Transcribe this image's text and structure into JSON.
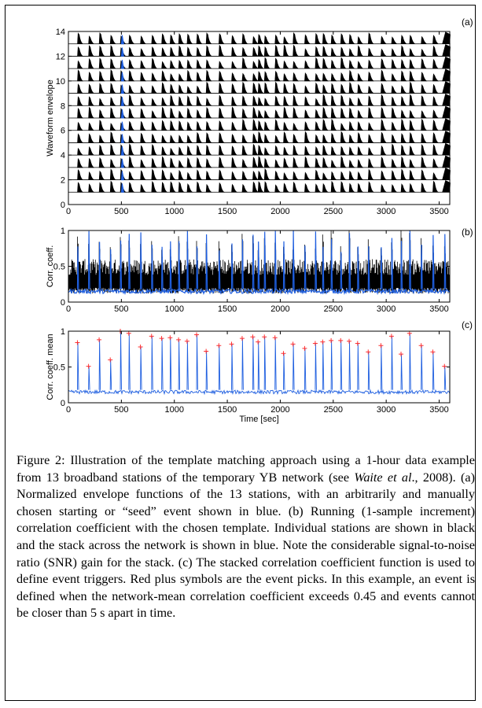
{
  "figure": {
    "caption": {
      "part1": "Figure 2: Illustration of the template matching approach using a 1-hour data example from 13 broadband stations of the temporary YB network (see ",
      "ref_author": "Waite et al",
      "part2": "., 2008). (a) Normalized envelope functions of the 13 stations, with an arbitrarily and manually chosen starting or “seed” event shown in blue. (b) Running (1-sample increment) correlation coefficient with the chosen template. Individual stations are shown in black and the stack across the network is shown in blue. Note the considerable signal-to-noise ratio (SNR) gain for the stack. (c) The stacked correlation coefficient function is used to define event triggers. Red plus symbols are the event picks. In this example, an event is defined when the network-mean correlation coefficient exceeds 0.45 and events cannot be closer than 5 s apart in time."
    }
  },
  "chart_data": [
    {
      "panel": "(a)",
      "type": "line",
      "xlabel": "",
      "ylabel": "Waveform envelope",
      "xlim": [
        0,
        3600
      ],
      "ylim": [
        0,
        14
      ],
      "xticks": [
        0,
        500,
        1000,
        1500,
        2000,
        2500,
        3000,
        3500
      ],
      "yticks": [
        0,
        2,
        4,
        6,
        8,
        10,
        12,
        14
      ],
      "station_offsets": [
        1,
        2,
        3,
        4,
        5,
        6,
        7,
        8,
        9,
        10,
        11,
        12,
        13
      ],
      "seed_event_time": 500,
      "event_times": [
        85,
        190,
        290,
        395,
        490,
        570,
        680,
        785,
        880,
        960,
        1040,
        1120,
        1210,
        1300,
        1420,
        1540,
        1640,
        1740,
        1790,
        1850,
        1950,
        2030,
        2120,
        2230,
        2330,
        2400,
        2480,
        2570,
        2650,
        2730,
        2830,
        2950,
        3050,
        3140,
        3220,
        3330,
        3440,
        3550
      ],
      "colors": {
        "stations": "#000000",
        "seed": "#1f5fe0"
      }
    },
    {
      "panel": "(b)",
      "type": "line",
      "xlabel": "",
      "ylabel": "Corr. coeff.",
      "xlim": [
        0,
        3600
      ],
      "ylim": [
        0,
        1
      ],
      "xticks": [
        0,
        500,
        1000,
        1500,
        2000,
        2500,
        3000,
        3500
      ],
      "yticks": [
        0,
        0.5,
        1
      ],
      "series": [
        {
          "role": "individual stations",
          "color": "#000000",
          "typical_range": [
            0.15,
            0.6
          ]
        },
        {
          "role": "stack across network",
          "color": "#1f5fe0",
          "baseline": 0.15
        }
      ]
    },
    {
      "panel": "(c)",
      "type": "line",
      "xlabel": "Time [sec]",
      "ylabel": "Corr. coeff. mean",
      "xlim": [
        0,
        3600
      ],
      "ylim": [
        0,
        1
      ],
      "xticks": [
        0,
        500,
        1000,
        1500,
        2000,
        2500,
        3000,
        3500
      ],
      "yticks": [
        0,
        0.5,
        1
      ],
      "baseline": 0.15,
      "threshold": 0.45,
      "picks": [
        {
          "t": 85,
          "v": 0.84
        },
        {
          "t": 190,
          "v": 0.51
        },
        {
          "t": 290,
          "v": 0.88
        },
        {
          "t": 395,
          "v": 0.6
        },
        {
          "t": 490,
          "v": 1.0
        },
        {
          "t": 570,
          "v": 0.97
        },
        {
          "t": 680,
          "v": 0.78
        },
        {
          "t": 785,
          "v": 0.93
        },
        {
          "t": 880,
          "v": 0.9
        },
        {
          "t": 960,
          "v": 0.91
        },
        {
          "t": 1040,
          "v": 0.88
        },
        {
          "t": 1120,
          "v": 0.86
        },
        {
          "t": 1210,
          "v": 0.95
        },
        {
          "t": 1300,
          "v": 0.72
        },
        {
          "t": 1420,
          "v": 0.8
        },
        {
          "t": 1540,
          "v": 0.82
        },
        {
          "t": 1640,
          "v": 0.9
        },
        {
          "t": 1740,
          "v": 0.92
        },
        {
          "t": 1790,
          "v": 0.85
        },
        {
          "t": 1850,
          "v": 0.92
        },
        {
          "t": 1950,
          "v": 0.91
        },
        {
          "t": 2030,
          "v": 0.69
        },
        {
          "t": 2120,
          "v": 0.82
        },
        {
          "t": 2230,
          "v": 0.76
        },
        {
          "t": 2330,
          "v": 0.83
        },
        {
          "t": 2400,
          "v": 0.85
        },
        {
          "t": 2480,
          "v": 0.87
        },
        {
          "t": 2570,
          "v": 0.87
        },
        {
          "t": 2650,
          "v": 0.86
        },
        {
          "t": 2730,
          "v": 0.83
        },
        {
          "t": 2830,
          "v": 0.71
        },
        {
          "t": 2950,
          "v": 0.8
        },
        {
          "t": 3050,
          "v": 0.93
        },
        {
          "t": 3140,
          "v": 0.68
        },
        {
          "t": 3220,
          "v": 0.97
        },
        {
          "t": 3330,
          "v": 0.8
        },
        {
          "t": 3440,
          "v": 0.71
        },
        {
          "t": 3550,
          "v": 0.51
        }
      ],
      "colors": {
        "line": "#1f5fe0",
        "picks": "#ff3030"
      }
    }
  ]
}
